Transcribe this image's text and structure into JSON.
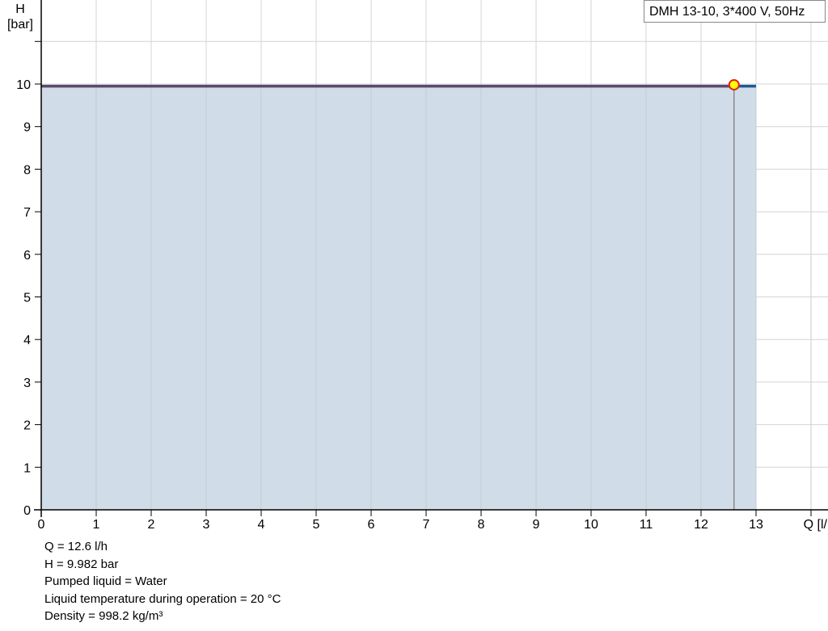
{
  "chart_data": {
    "type": "area",
    "xlabel": "Q [l/h]",
    "ylabel_top": "H",
    "ylabel_unit": "[bar]",
    "xlim": [
      0,
      14
    ],
    "ylim": [
      0,
      11.9
    ],
    "x_ticks": [
      0,
      1,
      2,
      3,
      4,
      5,
      6,
      7,
      8,
      9,
      10,
      11,
      12,
      13
    ],
    "y_ticks": [
      0,
      1,
      2,
      3,
      4,
      5,
      6,
      7,
      8,
      9,
      10
    ],
    "grid": true,
    "legend": "DMH 13-10, 3*400 V, 50Hz",
    "legend_position": "top-right",
    "series": [
      {
        "x": [
          0,
          13
        ],
        "y": [
          9.95,
          9.95
        ],
        "color": "#1f5a8e",
        "fill": "#d0dce7"
      }
    ],
    "operating_point": {
      "x": 12.6,
      "y": 9.982,
      "color": "#ffff00",
      "border": "#e02020"
    }
  },
  "info": [
    "Q = 12.6 l/h",
    "H = 9.982 bar",
    "Pumped liquid = Water",
    "Liquid temperature during operation = 20 °C",
    "Density = 998.2 kg/m³"
  ]
}
